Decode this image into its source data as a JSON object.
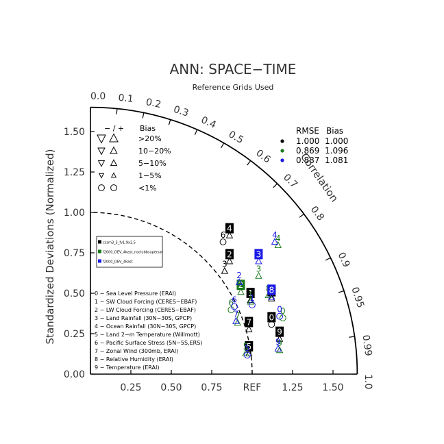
{
  "chart_data": {
    "type": "scatter",
    "subtype": "taylor-diagram",
    "title": "ANN: SPACE−TIME",
    "subtitle": "Reference Grids Used",
    "ylabel": "Standardized Deviations (Normalized)",
    "correlation_label": "Correlation",
    "ref_label": "REF",
    "std_range": [
      0,
      1.65
    ],
    "x_ticks": [
      {
        "v": 0.25,
        "label": "0.25"
      },
      {
        "v": 0.5,
        "label": "0.50"
      },
      {
        "v": 0.75,
        "label": "0.75"
      },
      {
        "v": 1.0,
        "label": "REF"
      },
      {
        "v": 1.25,
        "label": "1.25"
      },
      {
        "v": 1.5,
        "label": "1.50"
      }
    ],
    "y_ticks": [
      {
        "v": 0,
        "label": "0.00"
      },
      {
        "v": 0.25,
        "label": "0.25"
      },
      {
        "v": 0.5,
        "label": "0.50"
      },
      {
        "v": 0.75,
        "label": "0.75"
      },
      {
        "v": 1.0,
        "label": "1.00"
      },
      {
        "v": 1.25,
        "label": "1.25"
      },
      {
        "v": 1.5,
        "label": "1.50"
      }
    ],
    "corr_ticks": [
      {
        "v": 0.0,
        "label": "0.0"
      },
      {
        "v": 0.1,
        "label": "0.1"
      },
      {
        "v": 0.2,
        "label": "0.2"
      },
      {
        "v": 0.3,
        "label": "0.3"
      },
      {
        "v": 0.4,
        "label": "0.4"
      },
      {
        "v": 0.5,
        "label": "0.5"
      },
      {
        "v": 0.6,
        "label": "0.6"
      },
      {
        "v": 0.7,
        "label": "0.7"
      },
      {
        "v": 0.8,
        "label": "0.8"
      },
      {
        "v": 0.9,
        "label": "0.9"
      },
      {
        "v": 0.95,
        "label": "0.95"
      },
      {
        "v": 0.99,
        "label": "0.99"
      },
      {
        "v": 1.0,
        "label": "1.0"
      }
    ],
    "rmse_header": "RMSE",
    "bias_header": "Bias",
    "cases": [
      {
        "name": "ccsm3_5_fv1.9x2.5",
        "color": "#000000",
        "rmse": "1.000",
        "bias": "1.000"
      },
      {
        "name": "f2000_DEV_4kast_noclubbsupersat",
        "color": "#1a7a1a",
        "rmse": "0.869",
        "bias": "1.096"
      },
      {
        "name": "f2000_DEV_4kast",
        "color": "#1a1ae6",
        "rmse": "0.887",
        "bias": "1.081"
      }
    ],
    "bias_legend": {
      "header_signs": "− / +",
      "header_bias": "Bias",
      "rows": [
        ">20%",
        "10−20%",
        "5−10%",
        "1−5%",
        "<1%"
      ]
    },
    "variables": [
      "0 − Sea Level Pressure (ERAI)",
      "1 − SW Cloud Forcing (CERES−EBAF)",
      "2 − LW Cloud Forcing (CERES−EBAF)",
      "3 − Land Rainfall (30N−30S, GPCP)",
      "4 − Ocean Rainfall (30N−30S, GPCP)",
      "5 − Land 2−m Temperature (Willmott)",
      "6 − Pacific Surface Stress (5N−5S,ERS)",
      "7 − Zonal Wind (300mb, ERAI)",
      "8 − Relative Humidity (ERAI)",
      "9 − Temperature (ERAI)"
    ],
    "points": [
      {
        "case": 0,
        "var": "0",
        "x": 1.12,
        "y": 0.35,
        "boxed": true,
        "marker": "circle"
      },
      {
        "case": 0,
        "var": "1",
        "x": 0.99,
        "y": 0.5,
        "boxed": true,
        "marker": "up"
      },
      {
        "case": 0,
        "var": "2",
        "x": 0.86,
        "y": 0.74,
        "boxed": true,
        "marker": "up"
      },
      {
        "case": 0,
        "var": "3",
        "x": 0.83,
        "y": 0.68,
        "boxed": false,
        "marker": "up"
      },
      {
        "case": 0,
        "var": "4",
        "x": 0.86,
        "y": 0.9,
        "boxed": true,
        "marker": "up"
      },
      {
        "case": 0,
        "var": "5",
        "x": 0.98,
        "y": 0.17,
        "boxed": true,
        "marker": "up"
      },
      {
        "case": 0,
        "var": "6",
        "x": 0.82,
        "y": 0.86,
        "boxed": false,
        "marker": "circle"
      },
      {
        "case": 0,
        "var": "7",
        "x": 0.98,
        "y": 0.32,
        "boxed": true,
        "marker": "up"
      },
      {
        "case": 0,
        "var": "8",
        "x": 1.12,
        "y": 0.51,
        "boxed": true,
        "marker": "up"
      },
      {
        "case": 0,
        "var": "9",
        "x": 1.17,
        "y": 0.26,
        "boxed": true,
        "marker": "up"
      },
      {
        "case": 1,
        "var": "0",
        "x": 1.19,
        "y": 0.39,
        "boxed": false,
        "marker": "circle"
      },
      {
        "case": 1,
        "var": "1",
        "x": 0.99,
        "y": 0.49,
        "boxed": false,
        "marker": "up"
      },
      {
        "case": 1,
        "var": "2",
        "x": 0.93,
        "y": 0.55,
        "boxed": true,
        "marker": "up"
      },
      {
        "case": 1,
        "var": "3",
        "x": 1.04,
        "y": 0.65,
        "boxed": false,
        "marker": "up"
      },
      {
        "case": 1,
        "var": "4",
        "x": 1.16,
        "y": 0.84,
        "boxed": false,
        "marker": "up"
      },
      {
        "case": 1,
        "var": "5",
        "x": 0.96,
        "y": 0.17,
        "boxed": false,
        "marker": "up"
      },
      {
        "case": 1,
        "var": "6",
        "x": 0.87,
        "y": 0.44,
        "boxed": false,
        "marker": "circle"
      },
      {
        "case": 1,
        "var": "7",
        "x": 0.91,
        "y": 0.36,
        "boxed": false,
        "marker": "up"
      },
      {
        "case": 1,
        "var": "8",
        "x": 1.1,
        "y": 0.53,
        "boxed": false,
        "marker": "up"
      },
      {
        "case": 1,
        "var": "9",
        "x": 1.17,
        "y": 0.19,
        "boxed": false,
        "marker": "up"
      },
      {
        "case": 2,
        "var": "0",
        "x": 1.17,
        "y": 0.4,
        "boxed": false,
        "marker": "circle"
      },
      {
        "case": 2,
        "var": "1",
        "x": 1.0,
        "y": 0.47,
        "boxed": false,
        "marker": "circle"
      },
      {
        "case": 2,
        "var": "2",
        "x": 0.92,
        "y": 0.61,
        "boxed": false,
        "marker": "up"
      },
      {
        "case": 2,
        "var": "3",
        "x": 1.04,
        "y": 0.74,
        "boxed": true,
        "marker": "up"
      },
      {
        "case": 2,
        "var": "4",
        "x": 1.14,
        "y": 0.86,
        "boxed": false,
        "marker": "up"
      },
      {
        "case": 2,
        "var": "5",
        "x": 0.97,
        "y": 0.16,
        "boxed": false,
        "marker": "circle"
      },
      {
        "case": 2,
        "var": "6",
        "x": 0.89,
        "y": 0.46,
        "boxed": false,
        "marker": "circle"
      },
      {
        "case": 2,
        "var": "7",
        "x": 0.9,
        "y": 0.37,
        "boxed": false,
        "marker": "up"
      },
      {
        "case": 2,
        "var": "8",
        "x": 1.12,
        "y": 0.52,
        "boxed": true,
        "marker": "up"
      },
      {
        "case": 2,
        "var": "9",
        "x": 1.16,
        "y": 0.2,
        "boxed": false,
        "marker": "up"
      }
    ],
    "grid": false
  }
}
